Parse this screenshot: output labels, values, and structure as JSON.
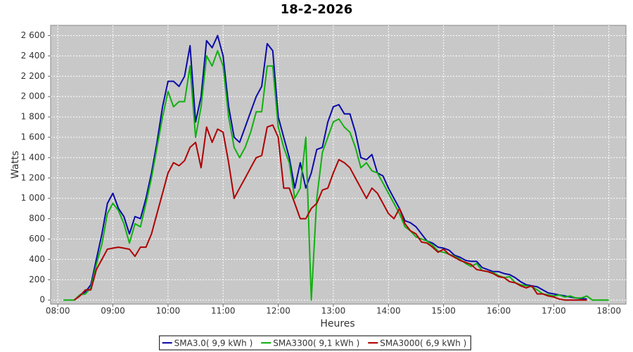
{
  "chart_data": {
    "type": "line",
    "title": "18-2-2026",
    "y_label": "Watts",
    "x_label": "Heures",
    "x": [
      8.1,
      8.2,
      8.3,
      8.4,
      8.5,
      8.6,
      8.7,
      8.8,
      8.9,
      9.0,
      9.1,
      9.2,
      9.3,
      9.4,
      9.5,
      9.6,
      9.7,
      9.8,
      9.9,
      10.0,
      10.1,
      10.2,
      10.3,
      10.4,
      10.5,
      10.6,
      10.7,
      10.8,
      10.9,
      11.0,
      11.1,
      11.2,
      11.3,
      11.4,
      11.5,
      11.6,
      11.7,
      11.8,
      11.9,
      12.0,
      12.1,
      12.2,
      12.3,
      12.4,
      12.5,
      12.6,
      12.7,
      12.8,
      12.9,
      13.0,
      13.1,
      13.2,
      13.3,
      13.4,
      13.5,
      13.6,
      13.7,
      13.8,
      13.9,
      14.0,
      14.1,
      14.2,
      14.3,
      14.4,
      14.5,
      14.6,
      14.7,
      14.8,
      14.9,
      15.0,
      15.1,
      15.2,
      15.3,
      15.4,
      15.5,
      15.6,
      15.7,
      15.8,
      15.9,
      16.0,
      16.1,
      16.2,
      16.3,
      16.4,
      16.5,
      16.6,
      16.7,
      16.8,
      16.9,
      17.0,
      17.1,
      17.2,
      17.3,
      17.4,
      17.5,
      17.6,
      17.7,
      17.8,
      17.9,
      18.0
    ],
    "series": [
      {
        "name": "SMA3.0( 9,9 kWh )",
        "color": "#0a0aa8",
        "values": [
          null,
          null,
          0,
          50,
          80,
          150,
          400,
          650,
          950,
          1050,
          900,
          820,
          650,
          820,
          800,
          1000,
          1250,
          1550,
          1900,
          2150,
          2150,
          2100,
          2200,
          2500,
          1750,
          2000,
          2550,
          2480,
          2600,
          2400,
          1900,
          1600,
          1550,
          1700,
          1850,
          2000,
          2100,
          2520,
          2450,
          1800,
          1600,
          1400,
          1100,
          1350,
          1100,
          1250,
          1480,
          1500,
          1750,
          1900,
          1920,
          1830,
          1830,
          1650,
          1400,
          1380,
          1430,
          1250,
          1220,
          1100,
          1000,
          900,
          780,
          760,
          720,
          650,
          580,
          560,
          520,
          510,
          490,
          440,
          420,
          390,
          380,
          380,
          320,
          300,
          280,
          280,
          260,
          250,
          220,
          180,
          150,
          140,
          130,
          100,
          70,
          60,
          50,
          40,
          30,
          20,
          15,
          10,
          null,
          null,
          null,
          null
        ]
      },
      {
        "name": "SMA3300( 9,1 kWh )",
        "color": "#10b010",
        "values": [
          0,
          0,
          0,
          50,
          60,
          120,
          350,
          550,
          850,
          950,
          880,
          750,
          560,
          750,
          720,
          950,
          1200,
          1500,
          1800,
          2050,
          1900,
          1950,
          1950,
          2300,
          1600,
          1900,
          2400,
          2300,
          2450,
          2300,
          1800,
          1500,
          1400,
          1500,
          1650,
          1850,
          1850,
          2300,
          2300,
          1700,
          1500,
          1350,
          1000,
          1100,
          1600,
          0,
          1000,
          1450,
          1600,
          1750,
          1780,
          1700,
          1650,
          1500,
          1300,
          1350,
          1270,
          1250,
          1150,
          1050,
          950,
          850,
          720,
          680,
          620,
          600,
          580,
          540,
          480,
          470,
          450,
          430,
          400,
          360,
          330,
          360,
          290,
          280,
          270,
          240,
          220,
          230,
          170,
          150,
          140,
          130,
          100,
          60,
          50,
          40,
          50,
          30,
          40,
          20,
          20,
          40,
          0,
          0,
          0,
          0
        ]
      },
      {
        "name": "SMA3000( 6,9 kWh )",
        "color": "#b00000",
        "values": [
          null,
          null,
          0,
          40,
          100,
          100,
          300,
          400,
          500,
          510,
          520,
          510,
          500,
          430,
          520,
          520,
          650,
          850,
          1050,
          1250,
          1350,
          1320,
          1370,
          1500,
          1550,
          1300,
          1700,
          1550,
          1680,
          1650,
          1350,
          1000,
          1100,
          1200,
          1300,
          1400,
          1420,
          1700,
          1720,
          1600,
          1100,
          1100,
          950,
          800,
          800,
          900,
          950,
          1080,
          1100,
          1250,
          1380,
          1350,
          1300,
          1200,
          1100,
          1000,
          1100,
          1050,
          950,
          850,
          800,
          900,
          750,
          680,
          650,
          570,
          560,
          520,
          470,
          500,
          450,
          420,
          390,
          370,
          350,
          300,
          290,
          280,
          260,
          230,
          220,
          180,
          170,
          140,
          120,
          140,
          60,
          60,
          40,
          30,
          10,
          0,
          0,
          0,
          0,
          0,
          null,
          null,
          null,
          null
        ]
      }
    ],
    "xlim": [
      7.87,
      18.31
    ],
    "xticks": [
      {
        "value": 8,
        "label": "08:00"
      },
      {
        "value": 9,
        "label": "09:00"
      },
      {
        "value": 10,
        "label": "10:00"
      },
      {
        "value": 11,
        "label": "11:00"
      },
      {
        "value": 12,
        "label": "12:00"
      },
      {
        "value": 13,
        "label": "13:00"
      },
      {
        "value": 14,
        "label": "14:00"
      },
      {
        "value": 15,
        "label": "15:00"
      },
      {
        "value": 16,
        "label": "16:00"
      },
      {
        "value": 17,
        "label": "17:00"
      },
      {
        "value": 18,
        "label": "18:00"
      }
    ],
    "ylim": [
      -40,
      2700
    ],
    "yticks": [
      0,
      200,
      400,
      600,
      800,
      {
        "value": 1000,
        "label": "1 000"
      },
      {
        "value": 1200,
        "label": "1 200"
      },
      {
        "value": 1400,
        "label": "1 400"
      },
      {
        "value": 1600,
        "label": "1 600"
      },
      {
        "value": 1800,
        "label": "1 800"
      },
      {
        "value": 2000,
        "label": "2 000"
      },
      {
        "value": 2200,
        "label": "2 200"
      },
      {
        "value": 2400,
        "label": "2 400"
      },
      {
        "value": 2600,
        "label": "2 600"
      }
    ],
    "grid": true,
    "legend": "bottom",
    "background": "#c8c8c8"
  }
}
